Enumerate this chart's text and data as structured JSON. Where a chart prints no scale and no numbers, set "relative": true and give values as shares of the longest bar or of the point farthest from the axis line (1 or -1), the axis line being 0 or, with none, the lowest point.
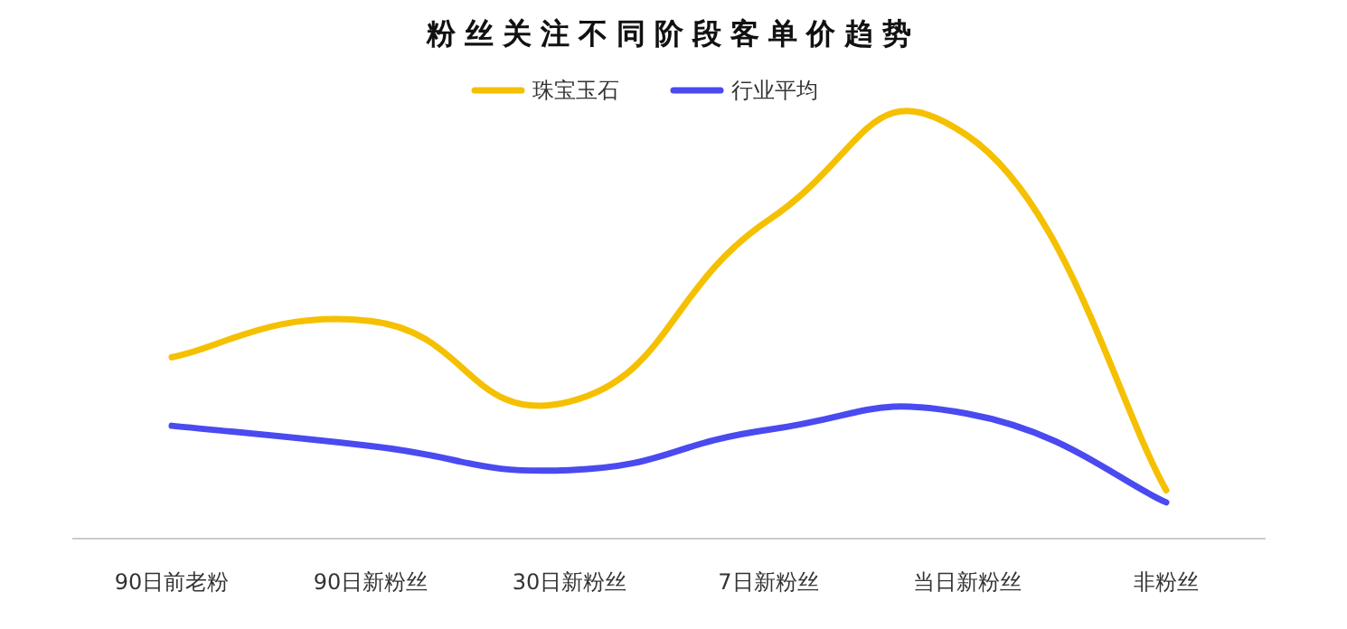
{
  "chart_data": {
    "type": "line",
    "title": "粉丝关注不同阶段客单价趋势",
    "categories": [
      "90日前老粉",
      "90日新粉丝",
      "30日新粉丝",
      "7日新粉丝",
      "当日新粉丝",
      "非粉丝"
    ],
    "series": [
      {
        "name": "珠宝玉石",
        "color": "#f5c000",
        "values": [
          0.45,
          0.54,
          0.34,
          0.79,
          1,
          0.12
        ]
      },
      {
        "name": "行业平均",
        "color": "#4a4af0",
        "values": [
          0.28,
          0.23,
          0.17,
          0.27,
          0.31,
          0.09
        ]
      }
    ],
    "relative": true,
    "legend": "top"
  }
}
